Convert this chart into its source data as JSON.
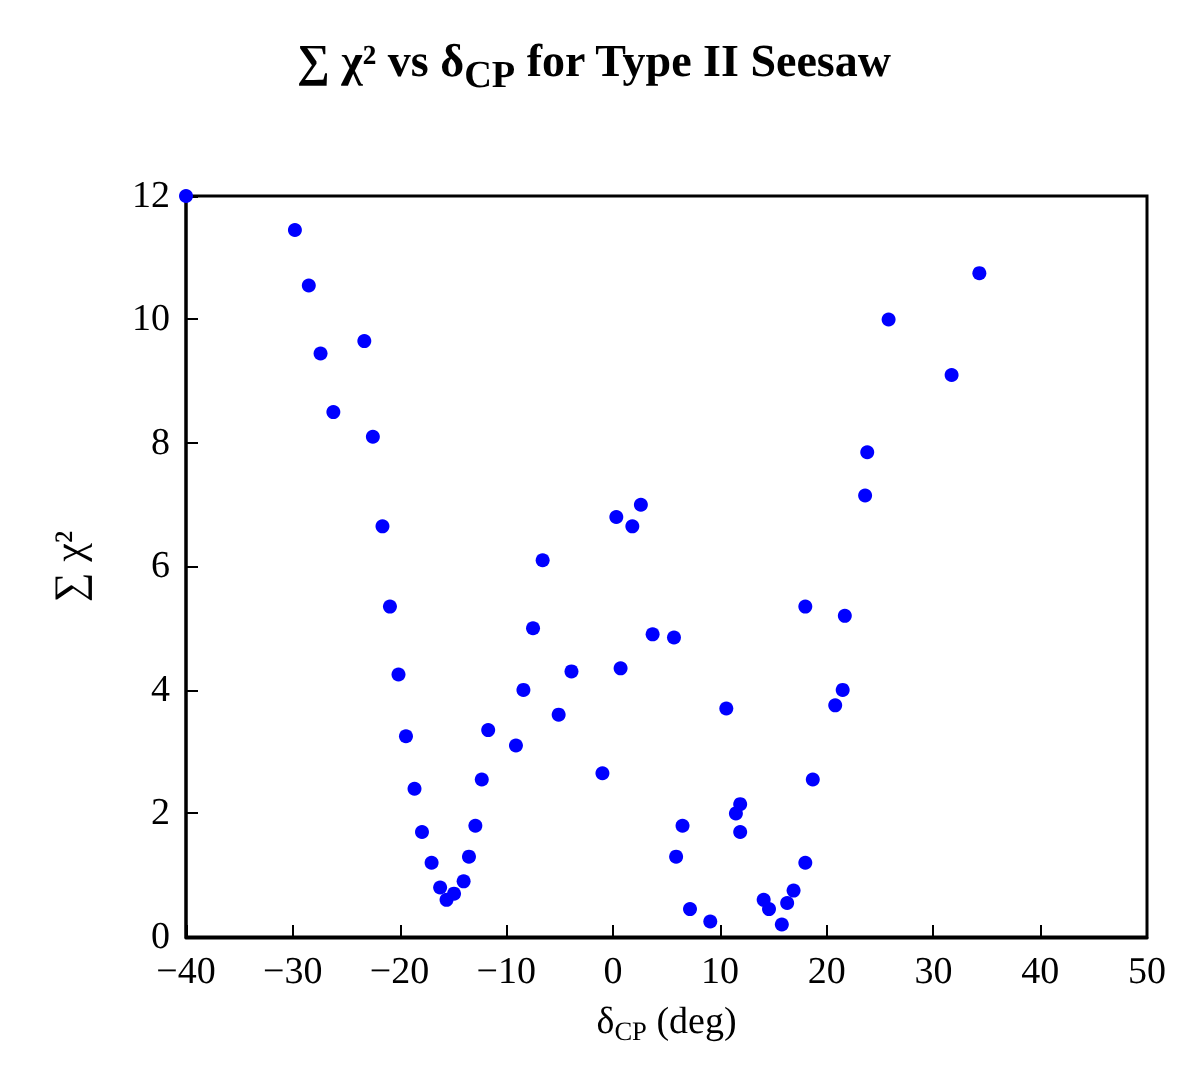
{
  "chart_data": {
    "type": "scatter",
    "title": "∑ χ² vs δ$_{CP}$ for Type II Seesaw",
    "xlabel": "δ$_{CP}$ (deg)",
    "ylabel": "∑ χ²",
    "xlim": [
      -40,
      50
    ],
    "xticks": [
      -40,
      -30,
      -20,
      -10,
      0,
      10,
      20,
      30,
      40,
      50
    ],
    "ylim": [
      0,
      12
    ],
    "yticks": [
      0,
      2,
      4,
      6,
      8,
      10,
      12
    ],
    "grid": false,
    "marker": "circle",
    "series": [
      {
        "color": "#0000ff",
        "x": [
          -40,
          -29.8,
          -28.5,
          -27.4,
          -26.2,
          -23.3,
          -22.5,
          -21.6,
          -20.9,
          -20.1,
          -19.4,
          -18.6,
          -17.9,
          -17.0,
          -16.2,
          -15.6,
          -14.9,
          -14.0,
          -13.5,
          -12.9,
          -12.3,
          -11.7,
          -9.1,
          -8.4,
          -7.5,
          -6.6,
          -5.1,
          -3.9,
          -1.0,
          0.3,
          0.7,
          1.8,
          2.6,
          3.7,
          5.7,
          5.9,
          6.5,
          7.2,
          9.1,
          10.6,
          11.5,
          11.9,
          11.9,
          14.1,
          14.6,
          15.8,
          16.3,
          16.9,
          18.0,
          18.0,
          18.7,
          20.8,
          21.5,
          21.7,
          23.6,
          23.8,
          25.8,
          31.7,
          34.3
        ],
        "values": [
          12.0,
          11.45,
          10.55,
          9.45,
          8.5,
          9.65,
          8.1,
          6.65,
          5.35,
          4.25,
          3.25,
          2.4,
          1.7,
          1.2,
          0.8,
          0.6,
          0.7,
          0.9,
          1.3,
          1.8,
          2.55,
          3.35,
          3.1,
          4.0,
          5.0,
          6.1,
          3.6,
          4.3,
          2.65,
          6.8,
          4.35,
          6.65,
          7.0,
          4.9,
          4.85,
          1.3,
          1.8,
          0.45,
          0.25,
          3.7,
          2.0,
          2.15,
          1.7,
          0.6,
          0.45,
          0.2,
          0.55,
          0.75,
          1.2,
          5.35,
          2.55,
          3.75,
          4.0,
          5.2,
          7.15,
          7.85,
          10.0,
          9.1,
          10.75
        ]
      }
    ]
  }
}
